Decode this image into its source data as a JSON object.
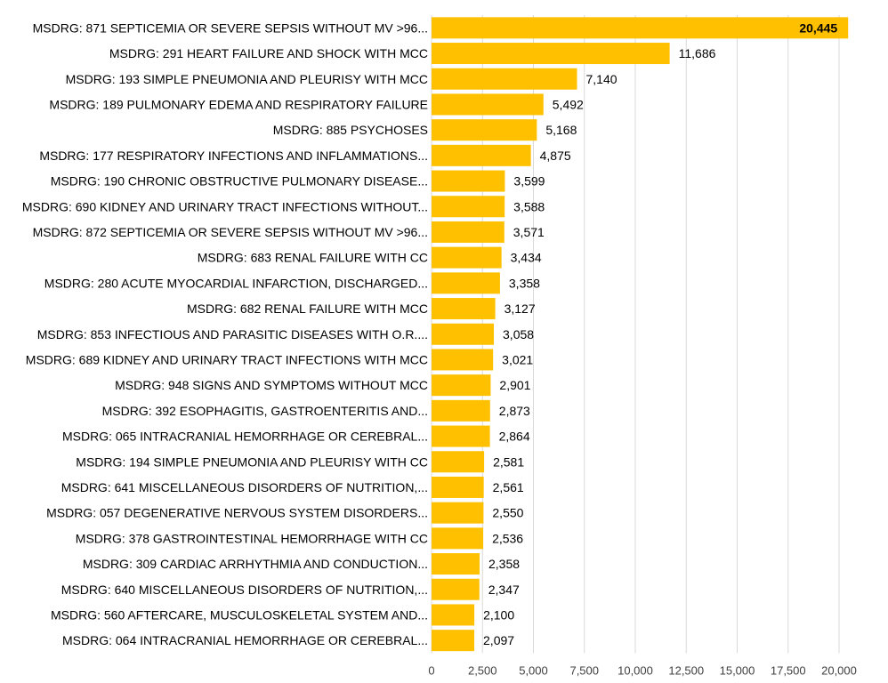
{
  "chart_data": {
    "type": "bar",
    "orientation": "horizontal",
    "title": "",
    "xlabel": "",
    "ylabel": "",
    "xlim": [
      0,
      20000
    ],
    "ticks": [
      0,
      2500,
      5000,
      7500,
      10000,
      12500,
      15000,
      17500,
      20000
    ],
    "tick_labels": [
      "0",
      "2,500",
      "5,000",
      "7,500",
      "10,000",
      "12,500",
      "15,000",
      "17,500",
      "20,000"
    ],
    "grid": true,
    "bar_color": "#FFC000",
    "grid_color": "#D9D9D9",
    "categories": [
      "MSDRG: 871 SEPTICEMIA OR SEVERE SEPSIS WITHOUT MV >96...",
      "MSDRG: 291 HEART FAILURE AND SHOCK WITH MCC",
      "MSDRG: 193 SIMPLE PNEUMONIA AND PLEURISY WITH MCC",
      "MSDRG: 189 PULMONARY EDEMA AND RESPIRATORY FAILURE",
      "MSDRG: 885 PSYCHOSES",
      "MSDRG: 177 RESPIRATORY INFECTIONS AND INFLAMMATIONS...",
      "MSDRG: 190 CHRONIC OBSTRUCTIVE PULMONARY DISEASE...",
      "MSDRG: 690 KIDNEY AND URINARY TRACT INFECTIONS WITHOUT...",
      "MSDRG: 872 SEPTICEMIA OR SEVERE SEPSIS WITHOUT MV >96...",
      "MSDRG: 683 RENAL FAILURE WITH CC",
      "MSDRG: 280 ACUTE MYOCARDIAL INFARCTION, DISCHARGED...",
      "MSDRG: 682 RENAL FAILURE WITH MCC",
      "MSDRG: 853 INFECTIOUS AND PARASITIC DISEASES WITH O.R....",
      "MSDRG: 689 KIDNEY AND URINARY TRACT INFECTIONS WITH MCC",
      "MSDRG: 948 SIGNS AND SYMPTOMS WITHOUT MCC",
      "MSDRG: 392 ESOPHAGITIS, GASTROENTERITIS AND...",
      "MSDRG: 065 INTRACRANIAL HEMORRHAGE OR CEREBRAL...",
      "MSDRG: 194 SIMPLE PNEUMONIA AND PLEURISY WITH CC",
      "MSDRG: 641 MISCELLANEOUS DISORDERS OF NUTRITION,...",
      "MSDRG: 057 DEGENERATIVE NERVOUS SYSTEM DISORDERS...",
      "MSDRG: 378 GASTROINTESTINAL HEMORRHAGE WITH CC",
      "MSDRG: 309 CARDIAC ARRHYTHMIA AND CONDUCTION...",
      "MSDRG: 640 MISCELLANEOUS DISORDERS OF NUTRITION,...",
      "MSDRG: 560 AFTERCARE, MUSCULOSKELETAL SYSTEM AND...",
      "MSDRG: 064 INTRACRANIAL HEMORRHAGE OR CEREBRAL..."
    ],
    "values": [
      20445,
      11686,
      7140,
      5492,
      5168,
      4875,
      3599,
      3588,
      3571,
      3434,
      3358,
      3127,
      3058,
      3021,
      2901,
      2873,
      2864,
      2581,
      2561,
      2550,
      2536,
      2358,
      2347,
      2100,
      2097
    ],
    "value_labels": [
      "20,445",
      "11,686",
      "7,140",
      "5,492",
      "5,168",
      "4,875",
      "3,599",
      "3,588",
      "3,571",
      "3,434",
      "3,358",
      "3,127",
      "3,058",
      "3,021",
      "2,901",
      "2,873",
      "2,864",
      "2,581",
      "2,561",
      "2,550",
      "2,536",
      "2,358",
      "2,347",
      "2,100",
      "2,097"
    ]
  }
}
